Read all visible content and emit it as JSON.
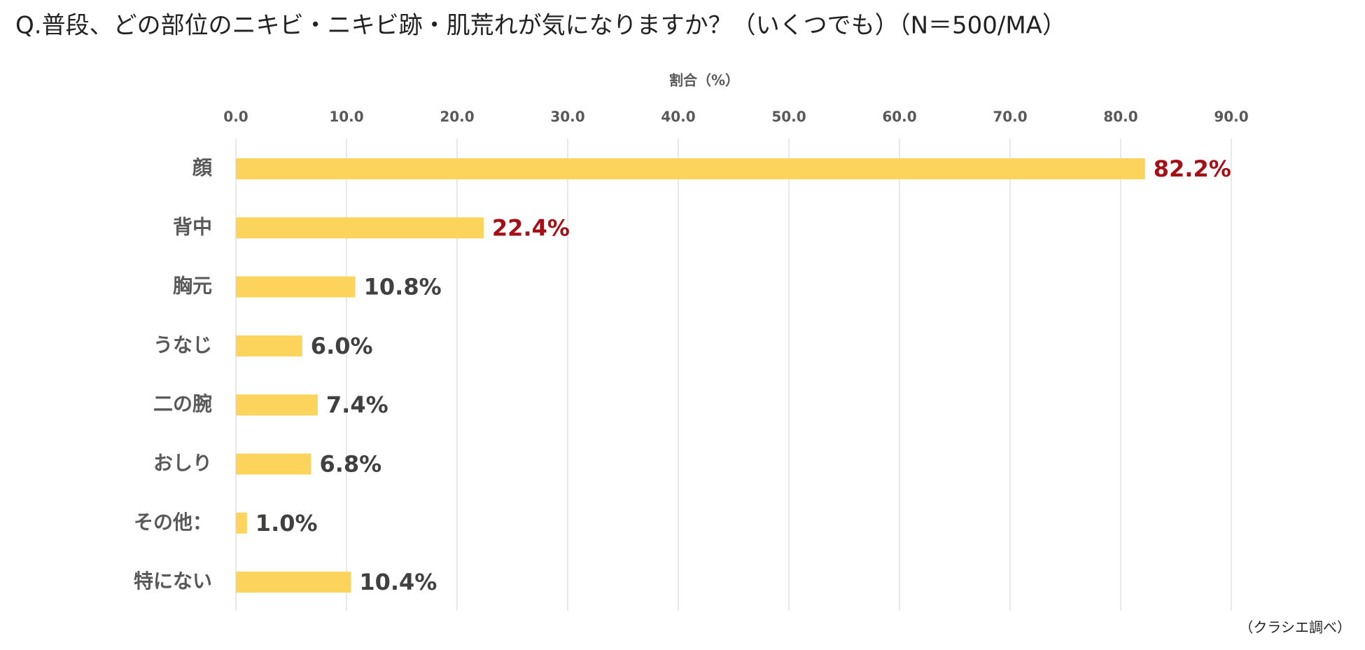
{
  "chart_data": {
    "type": "bar",
    "orientation": "horizontal",
    "title": "Q.普段、どの部位のニキビ・ニキビ跡・肌荒れが気になりますか？（いくつでも）（N＝500/MA）",
    "x_label": "割合（%）",
    "source": "（クラシエ調べ）",
    "categories": [
      "顔",
      "背中",
      "胸元",
      "うなじ",
      "二の腕",
      "おしり",
      "その他：",
      "特にない"
    ],
    "values": [
      82.2,
      22.4,
      10.8,
      6.0,
      7.4,
      6.8,
      1.0,
      10.4
    ],
    "value_labels": [
      "82.2%",
      "22.4%",
      "10.8%",
      "6.0%",
      "7.4%",
      "6.8%",
      "1.0%",
      "10.4%"
    ],
    "value_label_colors": [
      "#a50f15",
      "#a50f15",
      "#404040",
      "#404040",
      "#404040",
      "#404040",
      "#404040",
      "#404040"
    ],
    "color": "#fcd45c",
    "xlim": [
      0,
      90
    ],
    "xticks": [
      {
        "value": 0,
        "label": "0.0"
      },
      {
        "value": 10,
        "label": "10.0"
      },
      {
        "value": 20,
        "label": "20.0"
      },
      {
        "value": 30,
        "label": "30.0"
      },
      {
        "value": 40,
        "label": "40.0"
      },
      {
        "value": 50,
        "label": "50.0"
      },
      {
        "value": 60,
        "label": "60.0"
      },
      {
        "value": 70,
        "label": "70.0"
      },
      {
        "value": 80,
        "label": "80.0"
      },
      {
        "value": 90,
        "label": "90.0"
      }
    ],
    "grid": true
  }
}
